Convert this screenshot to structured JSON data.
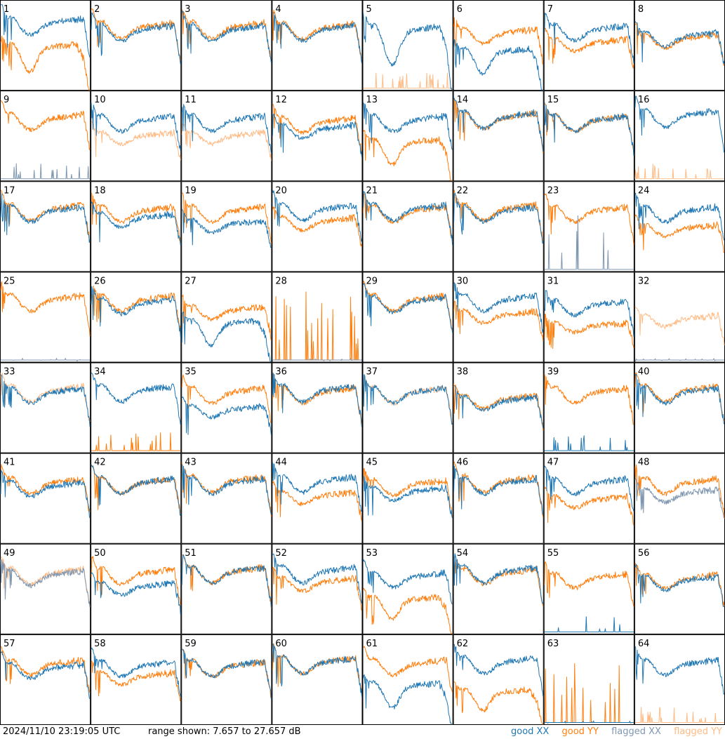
{
  "footer": {
    "timestamp": "2024/11/10 23:19:05 UTC",
    "range_text": "range shown: 7.657 to 27.657 dB"
  },
  "legend": [
    {
      "label": "good XX",
      "color": "#1f77b4"
    },
    {
      "label": "good YY",
      "color": "#ff7f0e"
    },
    {
      "label": "flagged XX",
      "color": "#7f97b1"
    },
    {
      "label": "flagged YY",
      "color": "#ffbb85"
    }
  ],
  "chart_data": {
    "type": "line",
    "layout": "8x8 small multiples",
    "y_range_db": [
      7.657,
      27.657
    ],
    "shape_legend": "1=bandpass, 2=bandpass with dip, 3=low-level flagged spikes",
    "panels": [
      {
        "label": "1",
        "xx": {
          "shape": 1,
          "flagged": false,
          "level": 0.78
        },
        "yy": {
          "shape": 2,
          "flagged": false,
          "level": 0.5
        }
      },
      {
        "label": "2",
        "xx": {
          "shape": 1,
          "flagged": false,
          "level": 0.7
        },
        "yy": {
          "shape": 1,
          "flagged": false,
          "level": 0.73
        }
      },
      {
        "label": "3",
        "xx": {
          "shape": 1,
          "flagged": false,
          "level": 0.7
        },
        "yy": {
          "shape": 1,
          "flagged": false,
          "level": 0.73
        }
      },
      {
        "label": "4",
        "xx": {
          "shape": 1,
          "flagged": false,
          "level": 0.7
        },
        "yy": {
          "shape": 1,
          "flagged": false,
          "level": 0.72
        }
      },
      {
        "label": "5",
        "xx": {
          "shape": 2,
          "flagged": false,
          "level": 0.7
        },
        "yy": {
          "shape": 3,
          "flagged": true,
          "level": 0.1
        }
      },
      {
        "label": "6",
        "xx": {
          "shape": 2,
          "flagged": false,
          "level": 0.45
        },
        "yy": {
          "shape": 1,
          "flagged": false,
          "level": 0.66
        }
      },
      {
        "label": "7",
        "xx": {
          "shape": 1,
          "flagged": false,
          "level": 0.7
        },
        "yy": {
          "shape": 1,
          "flagged": false,
          "level": 0.55
        }
      },
      {
        "label": "8",
        "xx": {
          "shape": 1,
          "flagged": false,
          "level": 0.62
        },
        "yy": {
          "shape": 1,
          "flagged": false,
          "level": 0.6
        }
      },
      {
        "label": "9",
        "xx": {
          "shape": 3,
          "flagged": true,
          "level": 0.1
        },
        "yy": {
          "shape": 1,
          "flagged": false,
          "level": 0.72
        }
      },
      {
        "label": "10",
        "xx": {
          "shape": 1,
          "flagged": false,
          "level": 0.7
        },
        "yy": {
          "shape": 1,
          "flagged": true,
          "level": 0.52
        }
      },
      {
        "label": "11",
        "xx": {
          "shape": 1,
          "flagged": false,
          "level": 0.7
        },
        "yy": {
          "shape": 1,
          "flagged": true,
          "level": 0.52
        }
      },
      {
        "label": "12",
        "xx": {
          "shape": 1,
          "flagged": false,
          "level": 0.6
        },
        "yy": {
          "shape": 1,
          "flagged": false,
          "level": 0.68
        }
      },
      {
        "label": "13",
        "xx": {
          "shape": 1,
          "flagged": false,
          "level": 0.7
        },
        "yy": {
          "shape": 2,
          "flagged": false,
          "level": 0.45
        }
      },
      {
        "label": "14",
        "xx": {
          "shape": 1,
          "flagged": false,
          "level": 0.74
        },
        "yy": {
          "shape": 1,
          "flagged": false,
          "level": 0.73
        }
      },
      {
        "label": "15",
        "xx": {
          "shape": 1,
          "flagged": false,
          "level": 0.7
        },
        "yy": {
          "shape": 1,
          "flagged": false,
          "level": 0.7
        }
      },
      {
        "label": "16",
        "xx": {
          "shape": 1,
          "flagged": false,
          "level": 0.76
        },
        "yy": {
          "shape": 3,
          "flagged": true,
          "level": 0.1
        }
      },
      {
        "label": "17",
        "xx": {
          "shape": 1,
          "flagged": false,
          "level": 0.7
        },
        "yy": {
          "shape": 1,
          "flagged": false,
          "level": 0.72
        }
      },
      {
        "label": "18",
        "xx": {
          "shape": 1,
          "flagged": false,
          "level": 0.62
        },
        "yy": {
          "shape": 1,
          "flagged": false,
          "level": 0.7
        }
      },
      {
        "label": "19",
        "xx": {
          "shape": 1,
          "flagged": false,
          "level": 0.55
        },
        "yy": {
          "shape": 1,
          "flagged": false,
          "level": 0.7
        }
      },
      {
        "label": "20",
        "xx": {
          "shape": 1,
          "flagged": false,
          "level": 0.72
        },
        "yy": {
          "shape": 1,
          "flagged": false,
          "level": 0.58
        }
      },
      {
        "label": "21",
        "xx": {
          "shape": 1,
          "flagged": false,
          "level": 0.72
        },
        "yy": {
          "shape": 1,
          "flagged": false,
          "level": 0.7
        }
      },
      {
        "label": "22",
        "xx": {
          "shape": 1,
          "flagged": false,
          "level": 0.7
        },
        "yy": {
          "shape": 1,
          "flagged": false,
          "level": 0.72
        }
      },
      {
        "label": "23",
        "xx": {
          "shape": 3,
          "flagged": true,
          "level": 0.35
        },
        "yy": {
          "shape": 1,
          "flagged": false,
          "level": 0.7
        }
      },
      {
        "label": "24",
        "xx": {
          "shape": 1,
          "flagged": false,
          "level": 0.7
        },
        "yy": {
          "shape": 1,
          "flagged": false,
          "level": 0.5
        }
      },
      {
        "label": "25",
        "xx": {
          "shape": 3,
          "flagged": true,
          "level": 0.02
        },
        "yy": {
          "shape": 1,
          "flagged": false,
          "level": 0.72
        }
      },
      {
        "label": "26",
        "xx": {
          "shape": 1,
          "flagged": false,
          "level": 0.68
        },
        "yy": {
          "shape": 1,
          "flagged": false,
          "level": 0.72
        }
      },
      {
        "label": "27",
        "xx": {
          "shape": 2,
          "flagged": false,
          "level": 0.45
        },
        "yy": {
          "shape": 1,
          "flagged": false,
          "level": 0.6
        }
      },
      {
        "label": "28",
        "xx": {
          "shape": 3,
          "flagged": true,
          "level": 0.02
        },
        "yy": {
          "shape": 3,
          "flagged": false,
          "level": 0.4
        }
      },
      {
        "label": "29",
        "xx": {
          "shape": 1,
          "flagged": false,
          "level": 0.7
        },
        "yy": {
          "shape": 1,
          "flagged": false,
          "level": 0.72
        }
      },
      {
        "label": "30",
        "xx": {
          "shape": 1,
          "flagged": false,
          "level": 0.72
        },
        "yy": {
          "shape": 1,
          "flagged": false,
          "level": 0.55
        }
      },
      {
        "label": "31",
        "xx": {
          "shape": 1,
          "flagged": false,
          "level": 0.66
        },
        "yy": {
          "shape": 1,
          "flagged": false,
          "level": 0.42
        }
      },
      {
        "label": "32",
        "xx": {
          "shape": 3,
          "flagged": true,
          "level": 0.02
        },
        "yy": {
          "shape": 1,
          "flagged": true,
          "level": 0.5
        }
      },
      {
        "label": "33",
        "xx": {
          "shape": 1,
          "flagged": false,
          "level": 0.7
        },
        "yy": {
          "shape": 1,
          "flagged": true,
          "level": 0.72
        }
      },
      {
        "label": "34",
        "xx": {
          "shape": 1,
          "flagged": false,
          "level": 0.72
        },
        "yy": {
          "shape": 3,
          "flagged": false,
          "level": 0.12
        }
      },
      {
        "label": "35",
        "xx": {
          "shape": 1,
          "flagged": false,
          "level": 0.5
        },
        "yy": {
          "shape": 1,
          "flagged": false,
          "level": 0.7
        }
      },
      {
        "label": "36",
        "xx": {
          "shape": 1,
          "flagged": false,
          "level": 0.72
        },
        "yy": {
          "shape": 1,
          "flagged": false,
          "level": 0.7
        }
      },
      {
        "label": "37",
        "xx": {
          "shape": 1,
          "flagged": false,
          "level": 0.7
        },
        "yy": {
          "shape": 1,
          "flagged": true,
          "level": 0.7
        }
      },
      {
        "label": "38",
        "xx": {
          "shape": 1,
          "flagged": false,
          "level": 0.6
        },
        "yy": {
          "shape": 1,
          "flagged": false,
          "level": 0.62
        }
      },
      {
        "label": "39",
        "xx": {
          "shape": 3,
          "flagged": false,
          "level": 0.1
        },
        "yy": {
          "shape": 1,
          "flagged": false,
          "level": 0.7
        }
      },
      {
        "label": "40",
        "xx": {
          "shape": 1,
          "flagged": false,
          "level": 0.7
        },
        "yy": {
          "shape": 1,
          "flagged": false,
          "level": 0.72
        }
      },
      {
        "label": "41",
        "xx": {
          "shape": 1,
          "flagged": false,
          "level": 0.66
        },
        "yy": {
          "shape": 1,
          "flagged": false,
          "level": 0.7
        }
      },
      {
        "label": "42",
        "xx": {
          "shape": 1,
          "flagged": false,
          "level": 0.7
        },
        "yy": {
          "shape": 1,
          "flagged": false,
          "level": 0.7
        }
      },
      {
        "label": "43",
        "xx": {
          "shape": 1,
          "flagged": false,
          "level": 0.7
        },
        "yy": {
          "shape": 1,
          "flagged": false,
          "level": 0.72
        }
      },
      {
        "label": "44",
        "xx": {
          "shape": 1,
          "flagged": false,
          "level": 0.72
        },
        "yy": {
          "shape": 1,
          "flagged": false,
          "level": 0.55
        }
      },
      {
        "label": "45",
        "xx": {
          "shape": 1,
          "flagged": false,
          "level": 0.6
        },
        "yy": {
          "shape": 1,
          "flagged": false,
          "level": 0.68
        }
      },
      {
        "label": "46",
        "xx": {
          "shape": 1,
          "flagged": false,
          "level": 0.7
        },
        "yy": {
          "shape": 1,
          "flagged": false,
          "level": 0.72
        }
      },
      {
        "label": "47",
        "xx": {
          "shape": 1,
          "flagged": false,
          "level": 0.7
        },
        "yy": {
          "shape": 1,
          "flagged": false,
          "level": 0.5
        }
      },
      {
        "label": "48",
        "xx": {
          "shape": 1,
          "flagged": true,
          "level": 0.58
        },
        "yy": {
          "shape": 1,
          "flagged": false,
          "level": 0.7
        }
      },
      {
        "label": "49",
        "xx": {
          "shape": 1,
          "flagged": true,
          "level": 0.68
        },
        "yy": {
          "shape": 1,
          "flagged": true,
          "level": 0.7
        }
      },
      {
        "label": "50",
        "xx": {
          "shape": 1,
          "flagged": false,
          "level": 0.55
        },
        "yy": {
          "shape": 1,
          "flagged": false,
          "level": 0.7
        }
      },
      {
        "label": "51",
        "xx": {
          "shape": 1,
          "flagged": false,
          "level": 0.72
        },
        "yy": {
          "shape": 1,
          "flagged": false,
          "level": 0.72
        }
      },
      {
        "label": "52",
        "xx": {
          "shape": 1,
          "flagged": false,
          "level": 0.72
        },
        "yy": {
          "shape": 1,
          "flagged": false,
          "level": 0.6
        }
      },
      {
        "label": "53",
        "xx": {
          "shape": 1,
          "flagged": false,
          "level": 0.66
        },
        "yy": {
          "shape": 2,
          "flagged": false,
          "level": 0.4
        }
      },
      {
        "label": "54",
        "xx": {
          "shape": 1,
          "flagged": false,
          "level": 0.72
        },
        "yy": {
          "shape": 1,
          "flagged": false,
          "level": 0.7
        }
      },
      {
        "label": "55",
        "xx": {
          "shape": 3,
          "flagged": false,
          "level": 0.1
        },
        "yy": {
          "shape": 1,
          "flagged": false,
          "level": 0.65
        }
      },
      {
        "label": "56",
        "xx": {
          "shape": 1,
          "flagged": false,
          "level": 0.62
        },
        "yy": {
          "shape": 1,
          "flagged": false,
          "level": 0.64
        }
      },
      {
        "label": "57",
        "xx": {
          "shape": 1,
          "flagged": false,
          "level": 0.65
        },
        "yy": {
          "shape": 1,
          "flagged": false,
          "level": 0.7
        }
      },
      {
        "label": "58",
        "xx": {
          "shape": 1,
          "flagged": false,
          "level": 0.68
        },
        "yy": {
          "shape": 1,
          "flagged": false,
          "level": 0.56
        }
      },
      {
        "label": "59",
        "xx": {
          "shape": 1,
          "flagged": false,
          "level": 0.68
        },
        "yy": {
          "shape": 1,
          "flagged": false,
          "level": 0.68
        }
      },
      {
        "label": "60",
        "xx": {
          "shape": 1,
          "flagged": false,
          "level": 0.72
        },
        "yy": {
          "shape": 1,
          "flagged": false,
          "level": 0.72
        }
      },
      {
        "label": "61",
        "xx": {
          "shape": 2,
          "flagged": false,
          "level": 0.45
        },
        "yy": {
          "shape": 1,
          "flagged": false,
          "level": 0.7
        }
      },
      {
        "label": "62",
        "xx": {
          "shape": 1,
          "flagged": false,
          "level": 0.72
        },
        "yy": {
          "shape": 2,
          "flagged": false,
          "level": 0.38
        }
      },
      {
        "label": "63",
        "xx": {
          "shape": 3,
          "flagged": false,
          "level": 0.02
        },
        "yy": {
          "shape": 3,
          "flagged": false,
          "level": 0.35
        }
      },
      {
        "label": "64",
        "xx": {
          "shape": 1,
          "flagged": false,
          "level": 0.7
        },
        "yy": {
          "shape": 3,
          "flagged": true,
          "level": 0.1
        }
      }
    ]
  }
}
